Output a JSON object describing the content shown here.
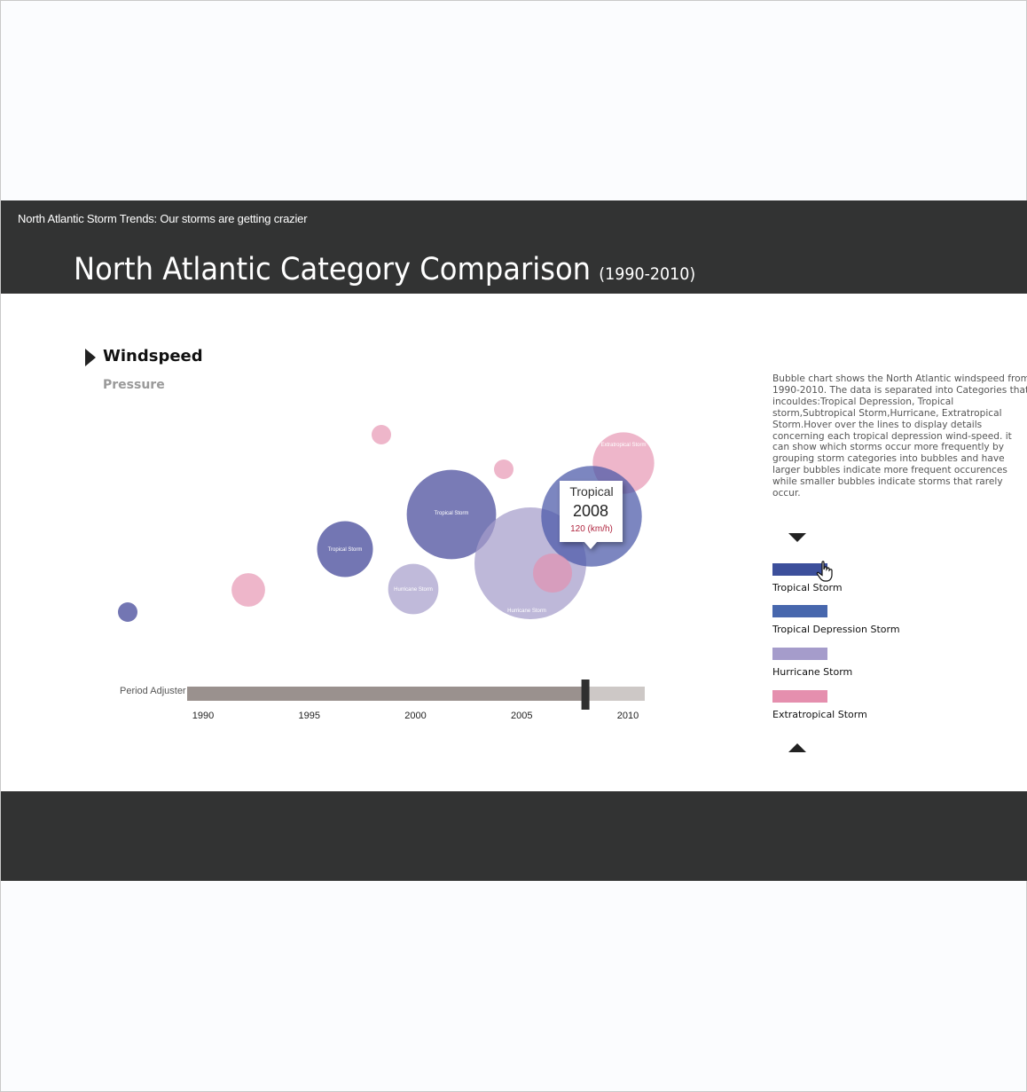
{
  "header": {
    "app_title": "North Atlantic Storm Trends: Our storms are getting crazier",
    "page_title": "North Atlantic Category Comparison",
    "page_subtitle": "(1990-2010)"
  },
  "metrics": {
    "windspeed": "Windspeed",
    "pressure": "Pressure",
    "active": "Windspeed"
  },
  "description": "Bubble chart shows the North Atlantic windspeed from 1990-2010. The data is separated into Categories that incouldes:Tropical Depression, Tropical storm,Subtropical Storm,Hurricane, Extratropical Storm.Hover over the lines  to display details concerning each tropical depression wind-speed. it can show which storms occur more frequently by grouping storm categories into bubbles and have larger bubbles indicate more frequent occurences while smaller bubbles indicate storms that rarely occur.",
  "colors": {
    "tropical_storm": "#5b5ea6",
    "tropical_depression": "#4767ad",
    "hurricane": "#a59ccb",
    "extratropical": "#e58fae",
    "header_bg": "#323333"
  },
  "legend": [
    {
      "label": "Tropical Storm",
      "color": "#3c4f9b"
    },
    {
      "label": "Tropical Depression Storm",
      "color": "#4767ad"
    },
    {
      "label": "Hurricane Storm",
      "color": "#a59ccb"
    },
    {
      "label": "Extratropical Storm",
      "color": "#e58fae"
    }
  ],
  "tooltip": {
    "title": "Tropical",
    "year": "2008",
    "value": "120  (km/h)"
  },
  "slider": {
    "label": "Period Adjuster",
    "ticks": [
      "1990",
      "1995",
      "2000",
      "2005",
      "2010"
    ],
    "min": 1990,
    "max": 2010,
    "value": 2008
  },
  "chart_data": {
    "type": "bubble",
    "bubbles": [
      {
        "category": "Tropical Depression",
        "size": 3,
        "color": "#5b5ea6",
        "opacity": 0.85,
        "label": ""
      },
      {
        "category": "Extratropical",
        "size": 6,
        "color": "#e58fae",
        "opacity": 0.65,
        "label": ""
      },
      {
        "category": "Tropical Storm",
        "size": 10,
        "color": "#5b5ea6",
        "opacity": 0.85,
        "label": "Tropical Storm"
      },
      {
        "category": "Hurricane",
        "size": 9,
        "color": "#a59ccb",
        "opacity": 0.7,
        "label": "Hurricane Storm"
      },
      {
        "category": "Extratropical",
        "size": 3,
        "color": "#e58fae",
        "opacity": 0.65,
        "label": ""
      },
      {
        "category": "Tropical Storm",
        "size": 16,
        "color": "#5b5ea6",
        "opacity": 0.82,
        "label": "Tropical Storm"
      },
      {
        "category": "Hurricane",
        "size": 20,
        "color": "#a59ccb",
        "opacity": 0.72,
        "label": "Hurricane Storm"
      },
      {
        "category": "Extratropical",
        "size": 3,
        "color": "#e58fae",
        "opacity": 0.65,
        "label": ""
      },
      {
        "category": "Extratropical",
        "size": 11,
        "color": "#e58fae",
        "opacity": 0.65,
        "label": "Extratropical Storm"
      },
      {
        "category": "Tropical Depression",
        "size": 18,
        "color": "#4a57a8",
        "opacity": 0.72,
        "label": ""
      },
      {
        "category": "Extratropical",
        "size": 7,
        "color": "#e58fae",
        "opacity": 0.65,
        "label": ""
      }
    ]
  }
}
